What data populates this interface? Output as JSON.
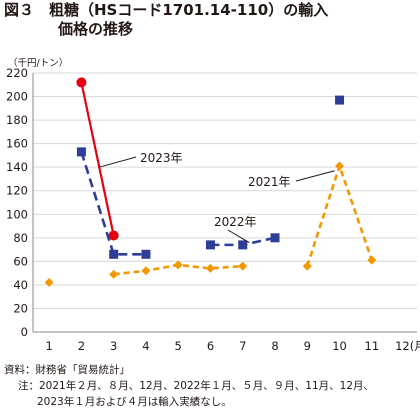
{
  "title_line1": "図３　粗糖（HSコード1701.14-110）の輸入",
  "title_line2": "価格の推移",
  "source_note": "資料：財務省「貿易統計」",
  "note_line1": "注：2021年２月、８月、12月、2022年１月、５月、９月、11月、12月、",
  "note_line2": "2023年１月および４月は輸入実績なし。",
  "chart_data": {
    "type": "line",
    "ylabel": "（千円/トン）",
    "ylim": [
      0,
      220
    ],
    "yticks": [
      0,
      20,
      40,
      60,
      80,
      100,
      120,
      140,
      160,
      180,
      200,
      220
    ],
    "xlim": [
      0.5,
      12.4
    ],
    "xtick_labels": [
      "1",
      "2",
      "3",
      "4",
      "5",
      "6",
      "7",
      "8",
      "9",
      "10",
      "11",
      "12(月)"
    ],
    "grid": "horizontal",
    "series": [
      {
        "name": "2021年",
        "color": "#F39800",
        "line_style": "dashed",
        "marker": "diamond",
        "segments": [
          [
            [
              1,
              42
            ]
          ],
          [
            [
              3,
              49
            ],
            [
              4,
              52
            ],
            [
              5,
              57
            ],
            [
              6,
              54
            ],
            [
              7,
              56
            ]
          ],
          [
            [
              9,
              56
            ],
            [
              10,
              141
            ],
            [
              11,
              61
            ]
          ]
        ]
      },
      {
        "name": "2022年",
        "color": "#2E3D98",
        "line_style": "dashed",
        "marker": "square",
        "segments": [
          [
            [
              2,
              153
            ],
            [
              3,
              66
            ],
            [
              4,
              66
            ]
          ],
          [
            [
              6,
              74
            ],
            [
              7,
              74
            ],
            [
              8,
              80
            ]
          ],
          [
            [
              10,
              197
            ]
          ]
        ]
      },
      {
        "name": "2023年",
        "color": "#E60012",
        "line_style": "solid",
        "marker": "circle",
        "segments": [
          [
            [
              2,
              212
            ],
            [
              3,
              82
            ]
          ]
        ]
      }
    ]
  }
}
